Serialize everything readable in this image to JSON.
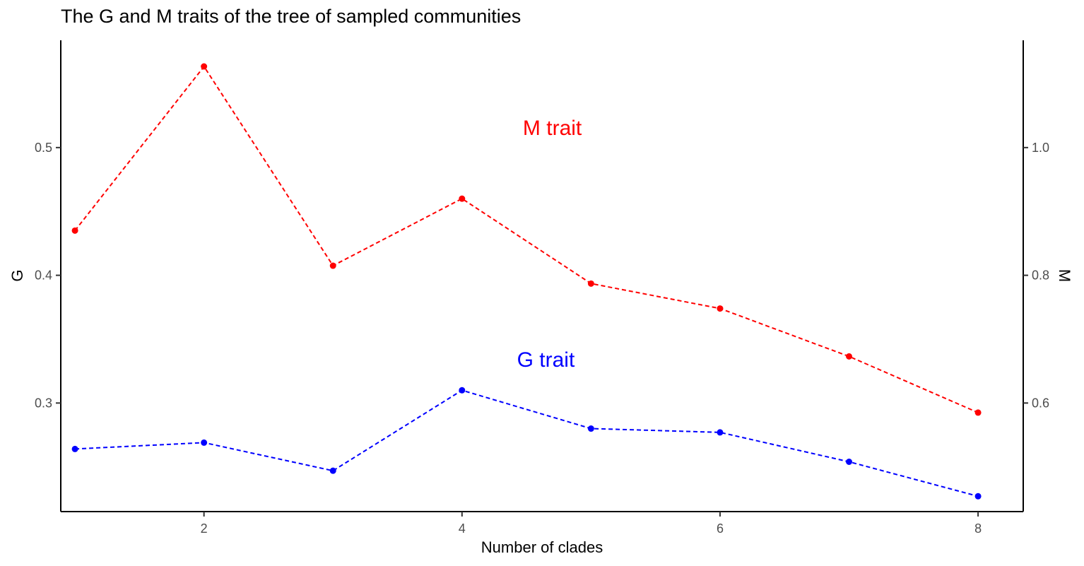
{
  "chart_data": {
    "type": "line",
    "title": "The G and M traits of the tree of sampled communities",
    "xlabel": "Number of clades",
    "ylabel": "G",
    "y2label": "M",
    "x": [
      1,
      2,
      3,
      4,
      5,
      6,
      7,
      8
    ],
    "xlim": [
      0.89,
      8.35
    ],
    "ylim": [
      0.215,
      0.584
    ],
    "y2lim": [
      0.43,
      1.168
    ],
    "xticks": [
      2,
      4,
      6,
      8
    ],
    "yticks": [
      0.3,
      0.4,
      0.5
    ],
    "y2ticks": [
      0.6,
      0.8,
      1.0
    ],
    "grid": false,
    "line_style": "dashed",
    "series": [
      {
        "name": "G trait",
        "axis": "left",
        "color": "#0000ff",
        "values": [
          0.264,
          0.269,
          0.247,
          0.31,
          0.28,
          0.277,
          0.254,
          0.227
        ]
      },
      {
        "name": "M trait",
        "axis": "right",
        "color": "#ff0000",
        "values": [
          0.87,
          1.127,
          0.815,
          0.92,
          0.787,
          0.748,
          0.673,
          0.585
        ]
      }
    ],
    "annotations": [
      {
        "text": "M trait",
        "x": 4.7,
        "y_axis": "right",
        "y": 1.02,
        "color": "#ff0000"
      },
      {
        "text": "G trait",
        "x": 4.65,
        "y_axis": "right",
        "y": 0.657,
        "color": "#0000ff"
      }
    ]
  }
}
